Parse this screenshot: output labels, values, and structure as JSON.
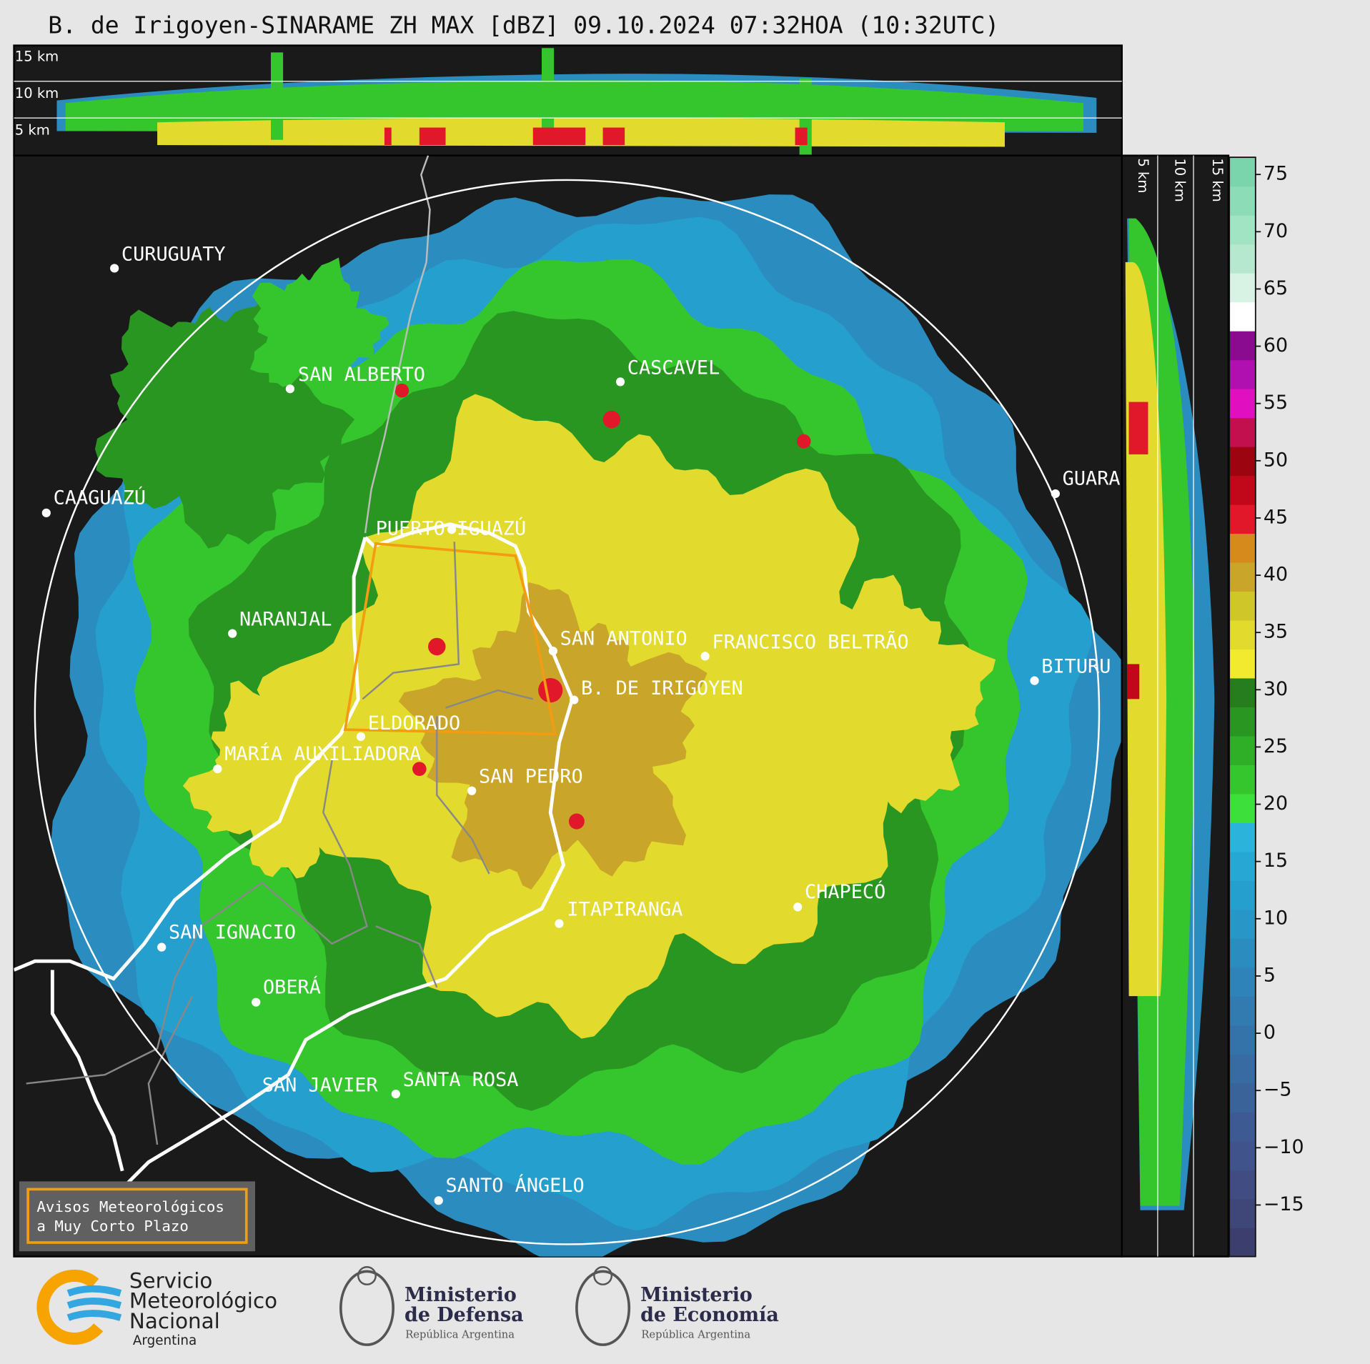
{
  "title": "B. de Irigoyen-SINARAME ZH MAX [dBZ] 09.10.2024 07:32HOA (10:32UTC)",
  "top_panel": {
    "height_labels": [
      "15 km",
      "10 km",
      "5 km"
    ]
  },
  "side_panel": {
    "height_labels": [
      "5 km",
      "10 km",
      "15 km"
    ]
  },
  "cities": [
    {
      "name": "CURUGUATY"
    },
    {
      "name": "SAN ALBERTO"
    },
    {
      "name": "CASCAVEL"
    },
    {
      "name": "CAAGUAZÚ"
    },
    {
      "name": "GUARA"
    },
    {
      "name": "PUERTO IGUAZÚ"
    },
    {
      "name": "NARANJAL"
    },
    {
      "name": "SAN ANTONIO"
    },
    {
      "name": "FRANCISCO BELTRÃO"
    },
    {
      "name": "B. DE IRIGOYEN"
    },
    {
      "name": "BITURU"
    },
    {
      "name": "ELDORADO"
    },
    {
      "name": "MARÍA AUXILIADORA"
    },
    {
      "name": "SAN PEDRO"
    },
    {
      "name": "ITAPIRANGA"
    },
    {
      "name": "CHAPECÓ"
    },
    {
      "name": "SAN IGNACIO"
    },
    {
      "name": "OBERÁ"
    },
    {
      "name": "SAN JAVIER"
    },
    {
      "name": "SANTA ROSA"
    },
    {
      "name": "SANTO ÁNGELO"
    }
  ],
  "colorbar": {
    "lim": [
      -19.5,
      76.5
    ],
    "ticks": [
      75,
      70,
      65,
      60,
      55,
      50,
      45,
      40,
      35,
      30,
      25,
      20,
      15,
      10,
      5,
      0,
      {
        "value": -5,
        "label": "−5"
      },
      {
        "value": -10,
        "label": "−10"
      },
      {
        "value": -15,
        "label": "−15"
      }
    ],
    "colors": [
      "#3c3f6e",
      "#3f4678",
      "#414d82",
      "#40548b",
      "#3d5b92",
      "#3a6399",
      "#376ba1",
      "#3473a9",
      "#317bb1",
      "#2e84b8",
      "#2b8dbf",
      "#2896c6",
      "#259fcd",
      "#27a8d4",
      "#2bb3dc",
      "#3de03a",
      "#35c62e",
      "#2fae27",
      "#2a9622",
      "#257d1d",
      "#f2ea2e",
      "#e2da2c",
      "#cfc62a",
      "#c9a52a",
      "#d68a1c",
      "#e0182a",
      "#c0081a",
      "#9c0410",
      "#c2104f",
      "#e010c0",
      "#b010b0",
      "#8a0a90",
      "#ffffff",
      "#d8f2e4",
      "#b6e8d0",
      "#a0e4c4",
      "#8cdcb8",
      "#7ad4ac"
    ]
  },
  "warning_box": {
    "lines": [
      "Avisos Meteorológicos",
      "a Muy Corto Plazo"
    ]
  },
  "logos": [
    {
      "lines": [
        "Servicio",
        "Meteorológico",
        "Nacional"
      ],
      "subtitle": "Argentina"
    },
    {
      "lines": [
        "Ministerio",
        "de Defensa"
      ],
      "subtitle": "República Argentina"
    },
    {
      "lines": [
        "Ministerio",
        "de Economía"
      ],
      "subtitle": "República Argentina"
    }
  ]
}
